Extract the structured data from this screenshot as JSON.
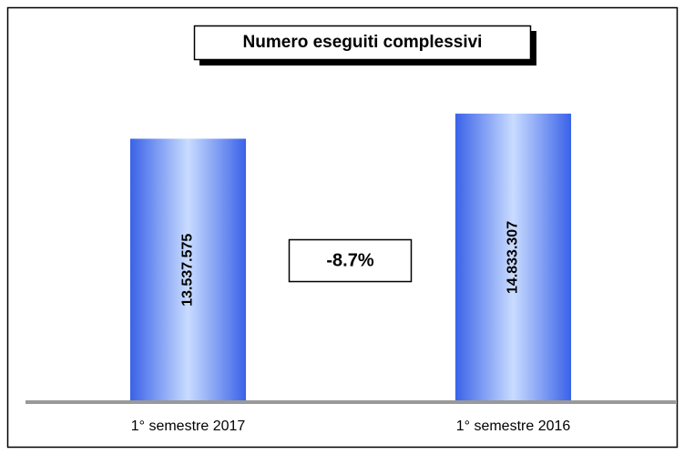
{
  "chart_data": {
    "type": "bar",
    "title": "Numero eseguiti complessivi",
    "categories": [
      "1° semestre 2017",
      "1° semestre 2016"
    ],
    "values": [
      13537575,
      14833307
    ],
    "value_labels": [
      "13.537.575",
      "14.833.307"
    ],
    "annotation": "-8.7%",
    "color": "#3a62e8",
    "ylim": [
      0,
      16000000
    ]
  }
}
